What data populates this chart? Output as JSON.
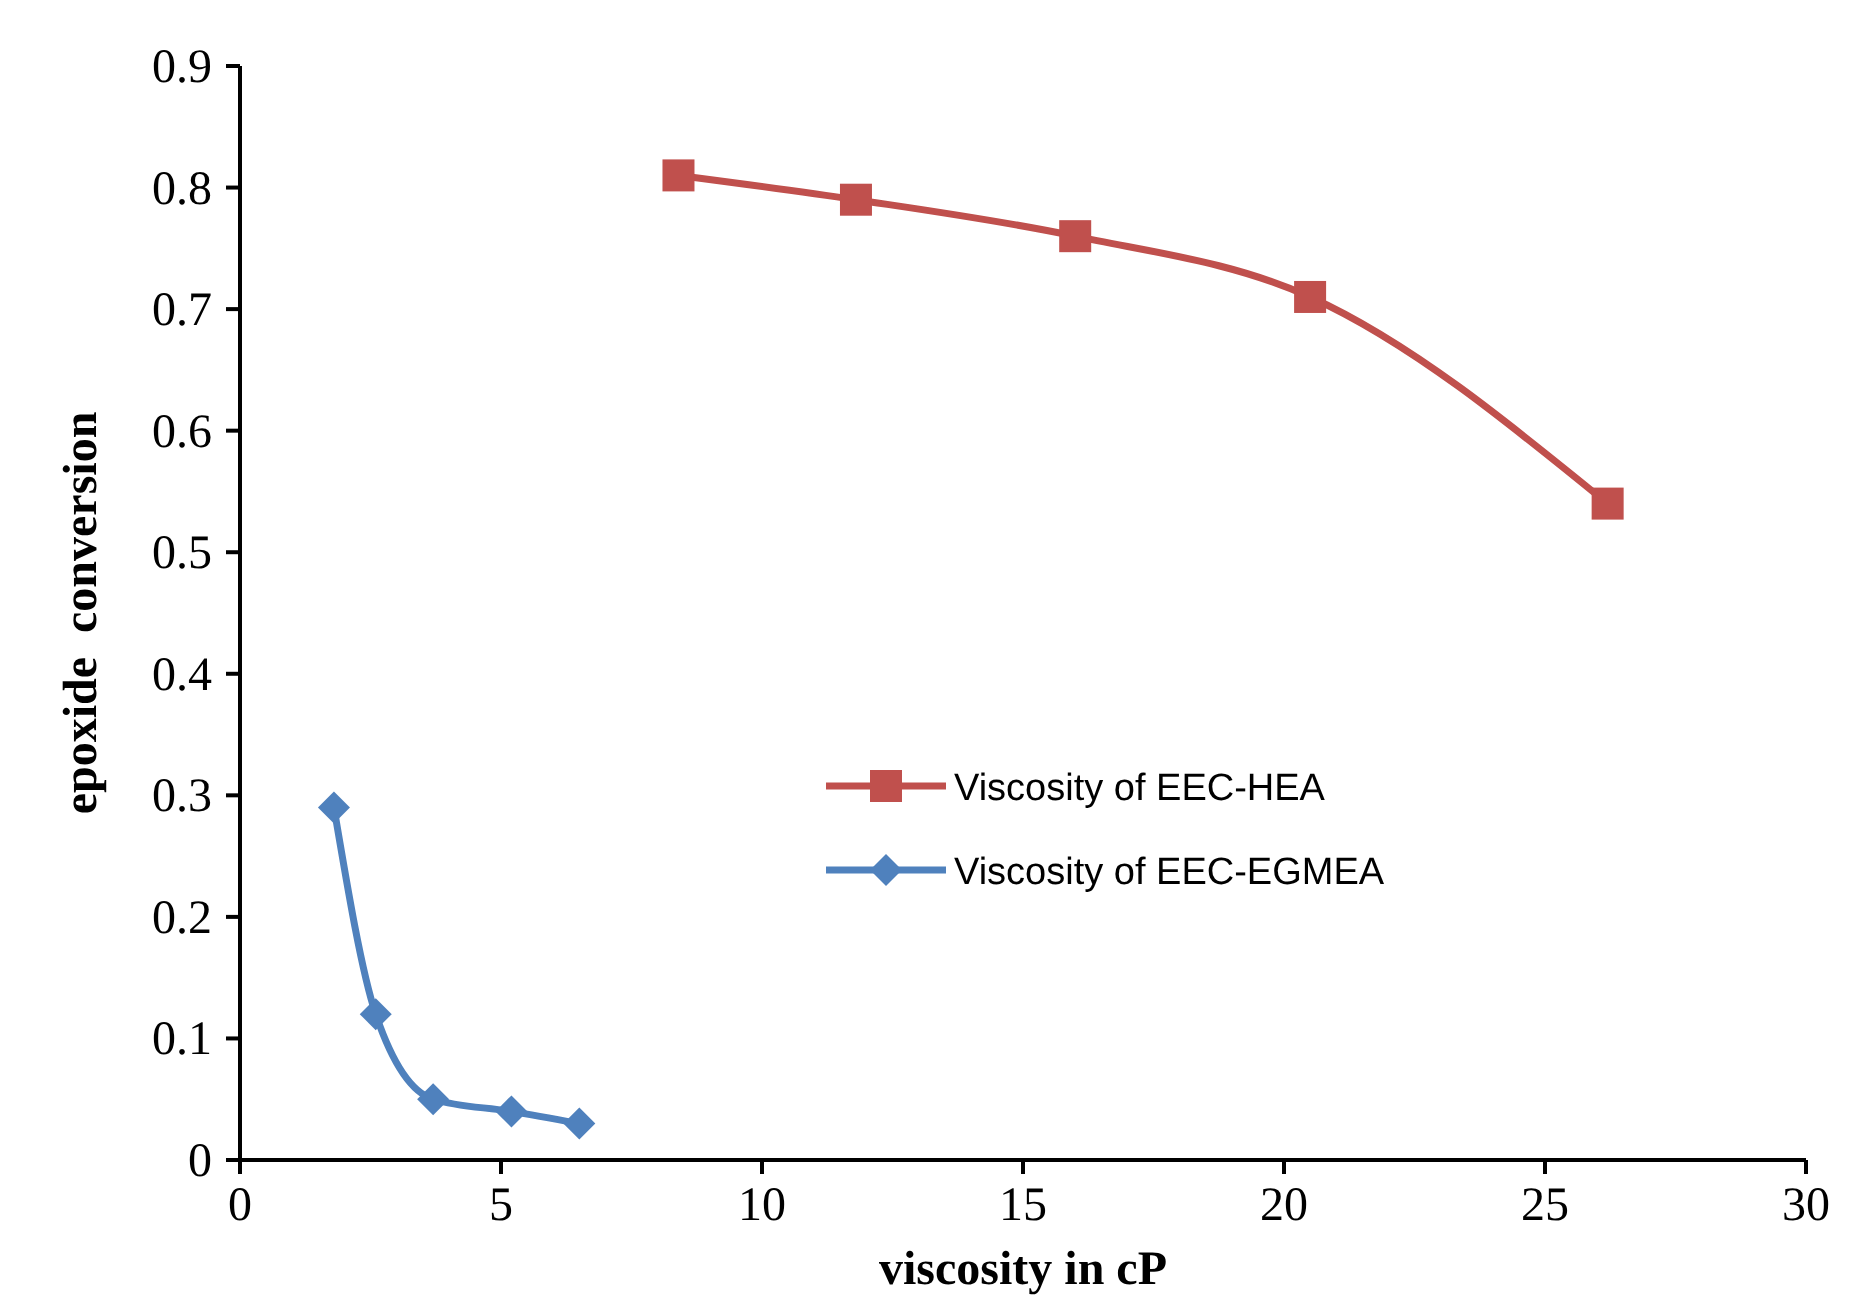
{
  "chart_data": {
    "type": "line",
    "xlabel": "viscosity in cP",
    "ylabel": "epoxide  conversion",
    "xlim": [
      0,
      30
    ],
    "xticks": [
      0,
      5,
      10,
      15,
      20,
      25,
      30
    ],
    "ylim": [
      0,
      0.9
    ],
    "yticks": [
      0,
      0.1,
      0.2,
      0.3,
      0.4,
      0.5,
      0.6,
      0.7,
      0.8,
      0.9
    ],
    "grid": false,
    "legend": "center",
    "series": [
      {
        "name": "Viscosity of EEC-HEA",
        "color": "#c0504d",
        "marker": "square",
        "x": [
          8.4,
          11.8,
          16.0,
          20.5,
          26.2
        ],
        "values": [
          0.81,
          0.79,
          0.76,
          0.71,
          0.54
        ]
      },
      {
        "name": "Viscosity of EEC-EGMEA",
        "color": "#4f81bd",
        "marker": "diamond",
        "x": [
          1.8,
          2.6,
          3.7,
          5.2,
          6.5
        ],
        "values": [
          0.29,
          0.12,
          0.05,
          0.04,
          0.03
        ]
      }
    ]
  }
}
